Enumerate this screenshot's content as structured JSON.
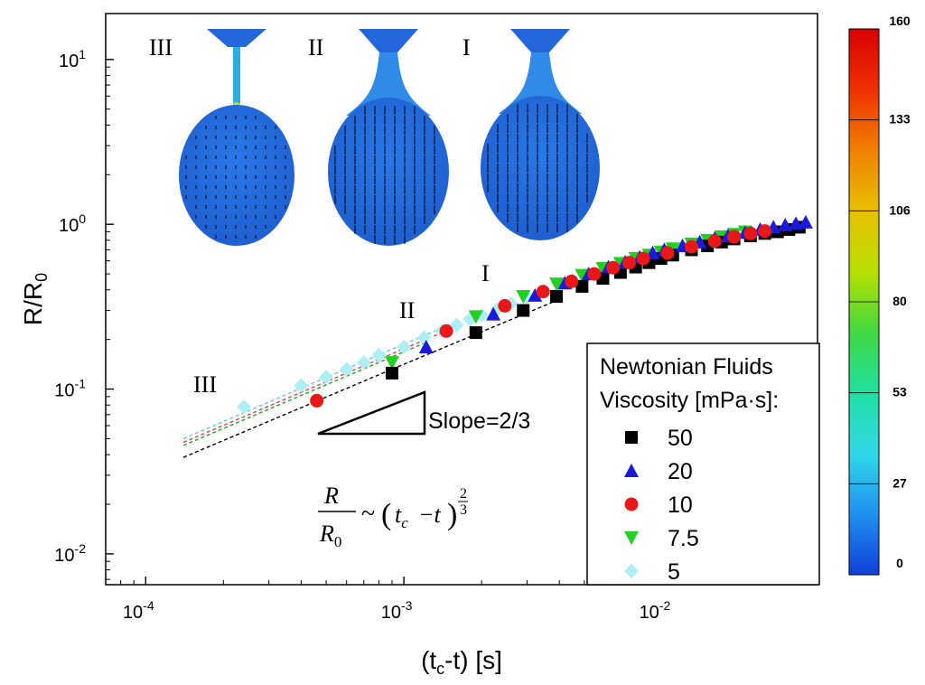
{
  "chart_data": {
    "type": "scatter",
    "xscale": "log",
    "yscale": "log",
    "xlim": [
      7e-05,
      0.04
    ],
    "ylim": [
      0.0065,
      19
    ],
    "xticks": [
      0.0001,
      0.001,
      0.01
    ],
    "yticks": [
      0.01,
      0.1,
      1,
      10
    ],
    "xlabel": {
      "main": "(t",
      "sub": "c",
      "tail": "-t) [s]"
    },
    "ylabel": {
      "main": "R/R",
      "sub": "0"
    },
    "legend": {
      "title_line1": "Newtonian Fluids",
      "title_line2": "Viscosity [mPa·s]:",
      "placement": "lower-right"
    },
    "series": [
      {
        "name": "50",
        "marker": "square",
        "color": "#000000",
        "x": [
          0.0009,
          0.0019,
          0.0029,
          0.0039,
          0.0049,
          0.0059,
          0.0069,
          0.0079,
          0.0089,
          0.0099,
          0.011,
          0.013,
          0.015,
          0.017,
          0.019,
          0.022,
          0.025,
          0.028,
          0.031,
          0.034
        ],
        "y": [
          0.125,
          0.22,
          0.3,
          0.365,
          0.42,
          0.47,
          0.51,
          0.55,
          0.585,
          0.62,
          0.65,
          0.7,
          0.74,
          0.78,
          0.815,
          0.85,
          0.88,
          0.9,
          0.93,
          0.96
        ]
      },
      {
        "name": "20",
        "marker": "triangle-up",
        "color": "#1a1ad8",
        "x": [
          0.00122,
          0.00222,
          0.00322,
          0.0042,
          0.0052,
          0.0062,
          0.0072,
          0.0082,
          0.0092,
          0.0102,
          0.012,
          0.014,
          0.016,
          0.018,
          0.021,
          0.024,
          0.027,
          0.03,
          0.033,
          0.036
        ],
        "y": [
          0.18,
          0.285,
          0.37,
          0.44,
          0.5,
          0.55,
          0.59,
          0.63,
          0.67,
          0.7,
          0.74,
          0.78,
          0.82,
          0.85,
          0.89,
          0.93,
          0.96,
          0.99,
          1.01,
          1.03
        ]
      },
      {
        "name": "10",
        "marker": "circle",
        "color": "#e81818",
        "x": [
          0.00046,
          0.00146,
          0.00246,
          0.00346,
          0.00446,
          0.00546,
          0.00646,
          0.00746,
          0.00846,
          0.0105,
          0.013,
          0.016,
          0.019,
          0.022,
          0.025
        ],
        "y": [
          0.085,
          0.225,
          0.32,
          0.39,
          0.45,
          0.5,
          0.545,
          0.585,
          0.62,
          0.67,
          0.73,
          0.79,
          0.84,
          0.88,
          0.91
        ]
      },
      {
        "name": "7.5",
        "marker": "triangle-down",
        "color": "#22d022",
        "x": [
          0.0009,
          0.0019,
          0.0029,
          0.0039,
          0.0049,
          0.0059,
          0.0069,
          0.0079,
          0.0089,
          0.0099,
          0.011,
          0.013,
          0.015,
          0.017,
          0.019,
          0.021
        ],
        "y": [
          0.145,
          0.275,
          0.365,
          0.435,
          0.49,
          0.54,
          0.58,
          0.62,
          0.65,
          0.68,
          0.71,
          0.76,
          0.8,
          0.84,
          0.87,
          0.9
        ]
      },
      {
        "name": "5",
        "marker": "diamond",
        "color": "#aeeff6",
        "x": [
          0.00024,
          0.0004,
          0.0005,
          0.0006,
          0.0007,
          0.0008,
          0.001,
          0.0012,
          0.0014,
          0.0016,
          0.0018,
          0.002,
          0.0023,
          0.0026,
          0.003,
          0.0035,
          0.004,
          0.0045,
          0.005,
          0.006,
          0.007,
          0.008,
          0.009,
          0.01,
          0.012,
          0.014
        ],
        "y": [
          0.078,
          0.105,
          0.118,
          0.132,
          0.145,
          0.16,
          0.18,
          0.205,
          0.225,
          0.245,
          0.265,
          0.28,
          0.305,
          0.33,
          0.36,
          0.395,
          0.43,
          0.46,
          0.49,
          0.54,
          0.58,
          0.62,
          0.65,
          0.68,
          0.73,
          0.77
        ]
      }
    ],
    "fit_lines": [
      {
        "color": "#000000",
        "x": [
          0.00014,
          0.0009
        ],
        "y": [
          0.0385,
          0.132
        ]
      },
      {
        "color": "#22a022",
        "x": [
          0.00014,
          0.0012
        ],
        "y": [
          0.0455,
          0.19
        ]
      },
      {
        "color": "#e04040",
        "x": [
          0.00014,
          0.0015
        ],
        "y": [
          0.0475,
          0.23
        ]
      },
      {
        "color": "#5fc8e0",
        "x": [
          0.00014,
          0.0014
        ],
        "y": [
          0.05,
          0.235
        ]
      }
    ],
    "annotations": {
      "slope": "Slope=2/3",
      "stage_labels_plot": [
        "III",
        "II",
        "I"
      ],
      "stage_labels_inset": [
        "III",
        "II",
        "I"
      ],
      "equation": {
        "num": "R",
        "den": "R",
        "den_sub": "0",
        "rhs_open": "~",
        "t": "t",
        "c": "c",
        "minus_t": "−t",
        "exp_num": "2",
        "exp_den": "3"
      }
    },
    "colorbar": {
      "ticks": [
        "160",
        "133",
        "106",
        "80",
        "53",
        "27",
        "0"
      ],
      "colors": [
        "#d80000",
        "#f03000",
        "#f08000",
        "#e8c000",
        "#b8e000",
        "#40d840",
        "#20e0a0",
        "#30d8e8",
        "#2090f0",
        "#1040d8"
      ]
    }
  }
}
